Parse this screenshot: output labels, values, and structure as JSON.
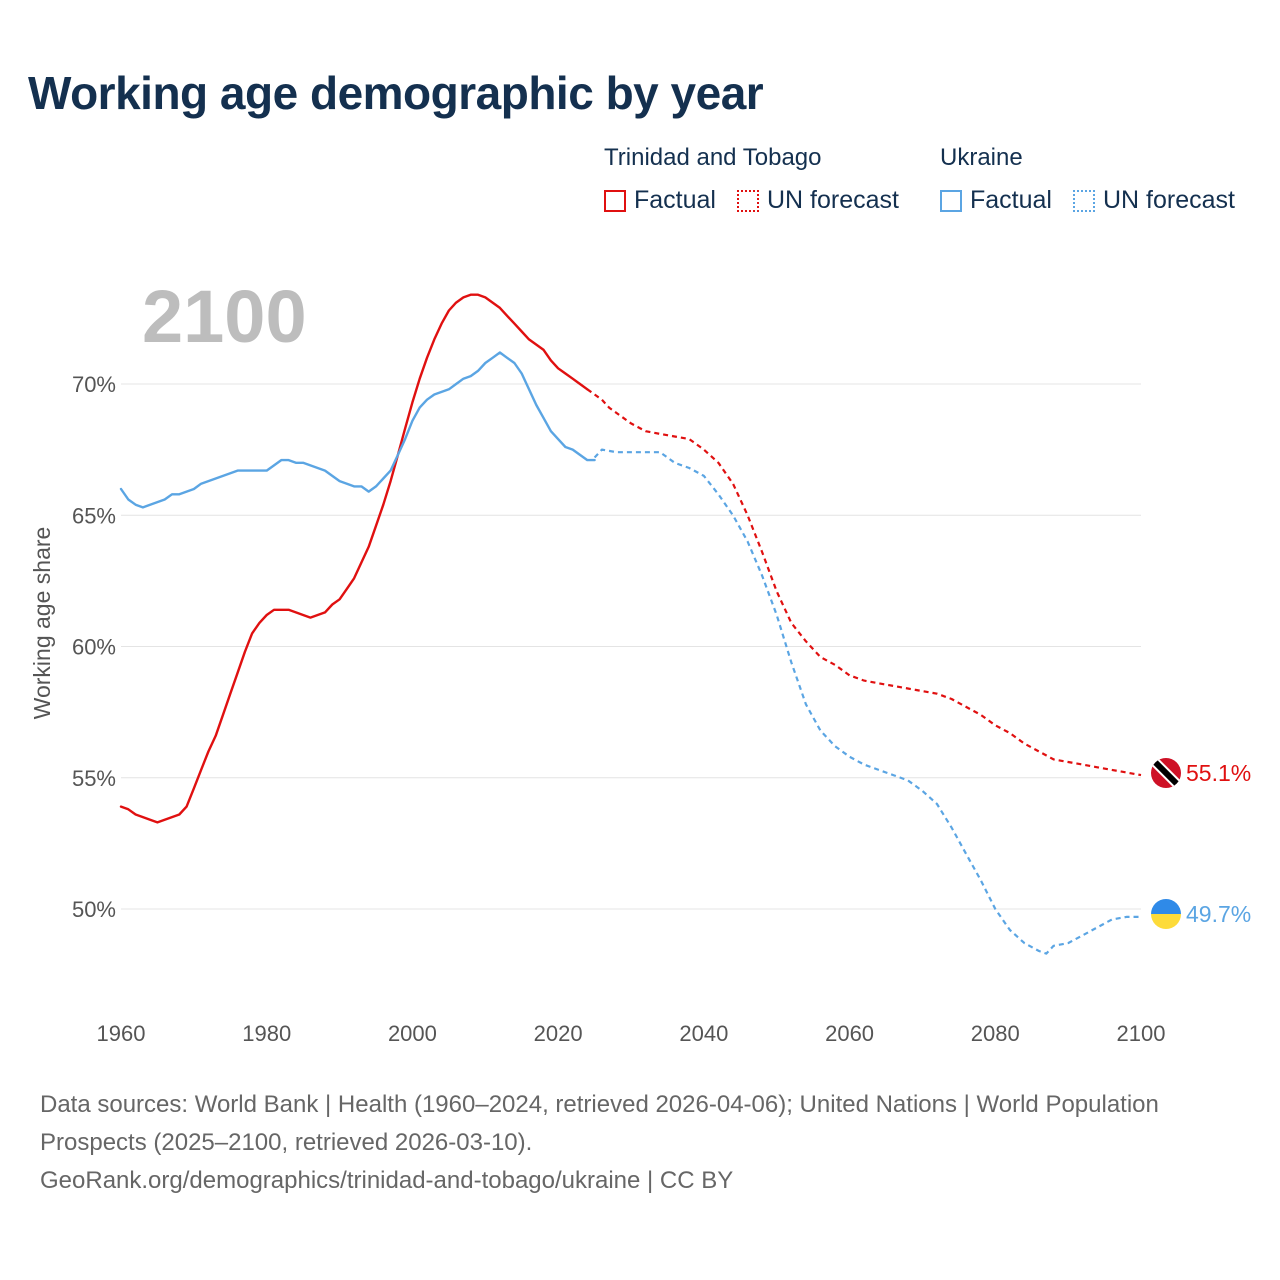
{
  "title": "Working age demographic by year",
  "legend": {
    "groups": [
      {
        "country": "Trinidad and Tobago",
        "factual": "Factual",
        "forecast": "UN forecast",
        "color": "#e01010"
      },
      {
        "country": "Ukraine",
        "factual": "Factual",
        "forecast": "UN forecast",
        "color": "#5ba5e3"
      }
    ]
  },
  "year_display": "2100",
  "source": {
    "line1": "Data sources: World Bank | Health (1960–2024, retrieved 2026-04-06); United Nations | World Population Prospects (2025–2100, retrieved 2026-03-10).",
    "line2": "GeoRank.org/demographics/trinidad-and-tobago/ukraine | CC BY"
  },
  "chart_data": {
    "type": "line",
    "title": "Working age demographic by year",
    "xlabel": "",
    "ylabel": "Working age share",
    "xlim": [
      1960,
      2100
    ],
    "ylim": [
      46.5,
      73.5
    ],
    "x_ticks": [
      1960,
      1980,
      2000,
      2020,
      2040,
      2060,
      2080,
      2100
    ],
    "x_tick_labels": [
      "1960",
      "1980",
      "2000",
      "2020",
      "2040",
      "2060",
      "2080",
      "2100"
    ],
    "y_ticks": [
      50,
      55,
      60,
      65,
      70
    ],
    "y_tick_labels": [
      "50%",
      "55%",
      "60%",
      "65%",
      "70%"
    ],
    "grid": true,
    "series": [
      {
        "name": "Trinidad and Tobago",
        "color": "#e01010",
        "end_label": "55.1%",
        "factual": {
          "x": [
            1960,
            1961,
            1962,
            1963,
            1964,
            1965,
            1966,
            1967,
            1968,
            1969,
            1970,
            1971,
            1972,
            1973,
            1974,
            1975,
            1976,
            1977,
            1978,
            1979,
            1980,
            1981,
            1982,
            1983,
            1984,
            1985,
            1986,
            1987,
            1988,
            1989,
            1990,
            1991,
            1992,
            1993,
            1994,
            1995,
            1996,
            1997,
            1998,
            1999,
            2000,
            2001,
            2002,
            2003,
            2004,
            2005,
            2006,
            2007,
            2008,
            2009,
            2010,
            2011,
            2012,
            2013,
            2014,
            2015,
            2016,
            2017,
            2018,
            2019,
            2020,
            2021,
            2022,
            2023,
            2024
          ],
          "y": [
            53.9,
            53.8,
            53.6,
            53.5,
            53.4,
            53.3,
            53.4,
            53.5,
            53.6,
            53.9,
            54.6,
            55.3,
            56.0,
            56.6,
            57.4,
            58.2,
            59.0,
            59.8,
            60.5,
            60.9,
            61.2,
            61.4,
            61.4,
            61.4,
            61.3,
            61.2,
            61.1,
            61.2,
            61.3,
            61.6,
            61.8,
            62.2,
            62.6,
            63.2,
            63.8,
            64.6,
            65.4,
            66.3,
            67.3,
            68.3,
            69.3,
            70.2,
            71.0,
            71.7,
            72.3,
            72.8,
            73.1,
            73.3,
            73.4,
            73.4,
            73.3,
            73.1,
            72.9,
            72.6,
            72.3,
            72.0,
            71.7,
            71.5,
            71.3,
            70.9,
            70.6,
            70.4,
            70.2,
            70.0,
            69.8
          ]
        },
        "forecast": {
          "x": [
            2024,
            2025,
            2026,
            2027,
            2028,
            2030,
            2032,
            2034,
            2036,
            2038,
            2040,
            2042,
            2044,
            2046,
            2048,
            2050,
            2052,
            2054,
            2056,
            2058,
            2060,
            2062,
            2064,
            2066,
            2068,
            2070,
            2072,
            2074,
            2076,
            2078,
            2080,
            2082,
            2084,
            2086,
            2088,
            2090,
            2092,
            2094,
            2096,
            2098,
            2100
          ],
          "y": [
            69.8,
            69.6,
            69.4,
            69.1,
            68.9,
            68.5,
            68.2,
            68.1,
            68.0,
            67.9,
            67.5,
            67.0,
            66.2,
            65.0,
            63.6,
            62.1,
            60.9,
            60.2,
            59.6,
            59.3,
            58.9,
            58.7,
            58.6,
            58.5,
            58.4,
            58.3,
            58.2,
            58.0,
            57.7,
            57.4,
            57.0,
            56.7,
            56.3,
            56.0,
            55.7,
            55.6,
            55.5,
            55.4,
            55.3,
            55.2,
            55.1
          ]
        }
      },
      {
        "name": "Ukraine",
        "color": "#5ba5e3",
        "end_label": "49.7%",
        "factual": {
          "x": [
            1960,
            1961,
            1962,
            1963,
            1964,
            1965,
            1966,
            1967,
            1968,
            1969,
            1970,
            1971,
            1972,
            1973,
            1974,
            1975,
            1976,
            1977,
            1978,
            1979,
            1980,
            1981,
            1982,
            1983,
            1984,
            1985,
            1986,
            1987,
            1988,
            1989,
            1990,
            1991,
            1992,
            1993,
            1994,
            1995,
            1996,
            1997,
            1998,
            1999,
            2000,
            2001,
            2002,
            2003,
            2004,
            2005,
            2006,
            2007,
            2008,
            2009,
            2010,
            2011,
            2012,
            2013,
            2014,
            2015,
            2016,
            2017,
            2018,
            2019,
            2020,
            2021,
            2022,
            2023,
            2024,
            2025
          ],
          "y": [
            66.0,
            65.6,
            65.4,
            65.3,
            65.4,
            65.5,
            65.6,
            65.8,
            65.8,
            65.9,
            66.0,
            66.2,
            66.3,
            66.4,
            66.5,
            66.6,
            66.7,
            66.7,
            66.7,
            66.7,
            66.7,
            66.9,
            67.1,
            67.1,
            67.0,
            67.0,
            66.9,
            66.8,
            66.7,
            66.5,
            66.3,
            66.2,
            66.1,
            66.1,
            65.9,
            66.1,
            66.4,
            66.7,
            67.3,
            67.9,
            68.6,
            69.1,
            69.4,
            69.6,
            69.7,
            69.8,
            70.0,
            70.2,
            70.3,
            70.5,
            70.8,
            71.0,
            71.2,
            71.0,
            70.8,
            70.4,
            69.8,
            69.2,
            68.7,
            68.2,
            67.9,
            67.6,
            67.5,
            67.3,
            67.1,
            67.1
          ]
        },
        "forecast": {
          "x": [
            2025,
            2026,
            2028,
            2030,
            2032,
            2034,
            2036,
            2038,
            2040,
            2042,
            2044,
            2046,
            2048,
            2050,
            2052,
            2054,
            2056,
            2058,
            2060,
            2062,
            2064,
            2066,
            2068,
            2070,
            2072,
            2074,
            2076,
            2078,
            2080,
            2082,
            2084,
            2086,
            2087,
            2088,
            2090,
            2092,
            2094,
            2096,
            2098,
            2100
          ],
          "y": [
            67.2,
            67.5,
            67.4,
            67.4,
            67.4,
            67.4,
            67.0,
            66.8,
            66.5,
            65.8,
            65.0,
            64.0,
            62.7,
            61.2,
            59.4,
            57.8,
            56.8,
            56.2,
            55.8,
            55.5,
            55.3,
            55.1,
            54.9,
            54.5,
            54.0,
            53.1,
            52.1,
            51.1,
            50.0,
            49.2,
            48.7,
            48.4,
            48.3,
            48.6,
            48.7,
            49.0,
            49.3,
            49.6,
            49.7,
            49.7
          ]
        }
      }
    ]
  }
}
